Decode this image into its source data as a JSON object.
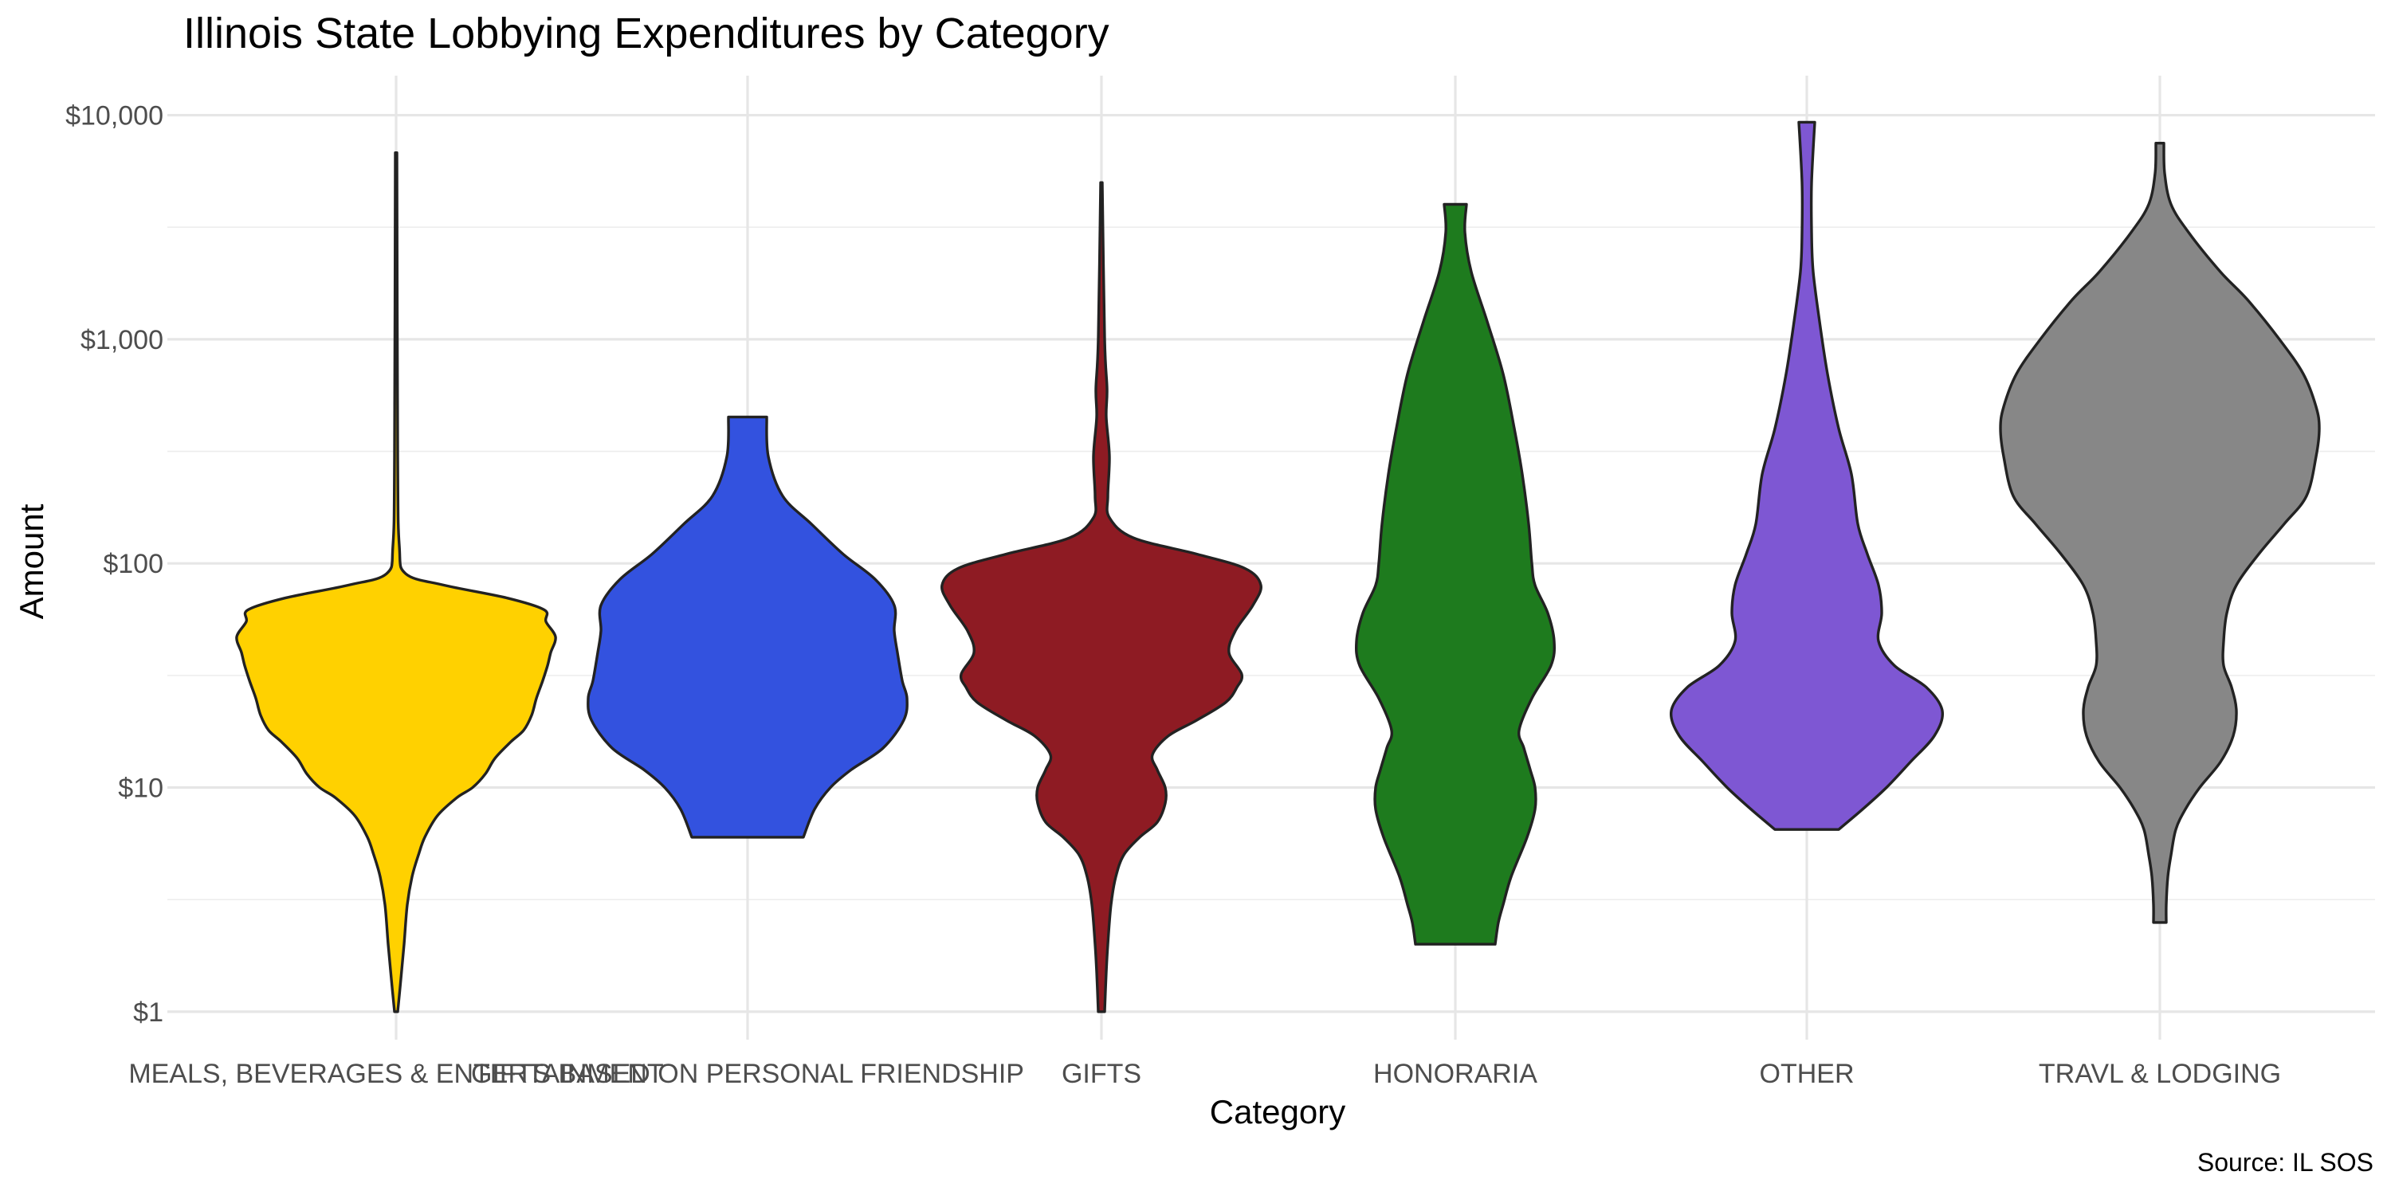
{
  "chart_data": {
    "type": "violin",
    "title": "Illinois State Lobbying Expenditures by Category",
    "xlabel": "Category",
    "ylabel": "Amount",
    "caption": "Source: IL SOS",
    "y_scale": "log10",
    "ylim": [
      1,
      10000
    ],
    "y_ticks": [
      {
        "value": 1,
        "label": "$1"
      },
      {
        "value": 10,
        "label": "$10"
      },
      {
        "value": 100,
        "label": "$100"
      },
      {
        "value": 1000,
        "label": "$1,000"
      },
      {
        "value": 10000,
        "label": "$10,000"
      }
    ],
    "grid": true,
    "legend": "none",
    "categories": [
      {
        "label": "MEALS, BEVERAGES & ENTERTAINMENT",
        "color": "#FFD100",
        "min": 1,
        "max": 6800,
        "profile": [
          [
            1,
            0.01
          ],
          [
            1.4,
            0.03
          ],
          [
            2,
            0.05
          ],
          [
            3,
            0.07
          ],
          [
            4,
            0.1
          ],
          [
            5,
            0.14
          ],
          [
            6,
            0.18
          ],
          [
            7.5,
            0.26
          ],
          [
            9,
            0.38
          ],
          [
            10,
            0.48
          ],
          [
            11.5,
            0.56
          ],
          [
            13.5,
            0.62
          ],
          [
            16,
            0.72
          ],
          [
            18,
            0.8
          ],
          [
            21,
            0.85
          ],
          [
            25,
            0.88
          ],
          [
            30,
            0.92
          ],
          [
            35,
            0.95
          ],
          [
            40,
            0.97
          ],
          [
            47,
            1.0
          ],
          [
            55,
            0.94
          ],
          [
            62,
            0.93
          ],
          [
            70,
            0.7
          ],
          [
            80,
            0.3
          ],
          [
            90,
            0.06
          ],
          [
            120,
            0.02
          ],
          [
            300,
            0.01
          ],
          [
            6800,
            0.005
          ]
        ]
      },
      {
        "label": "GIFTS BASED ON PERSONAL FRIENDSHIP",
        "color": "#3352DF",
        "min": 6,
        "max": 450,
        "profile": [
          [
            6,
            0.35
          ],
          [
            8,
            0.42
          ],
          [
            10,
            0.52
          ],
          [
            12,
            0.65
          ],
          [
            15,
            0.85
          ],
          [
            20,
            0.98
          ],
          [
            25,
            1.0
          ],
          [
            30,
            0.97
          ],
          [
            40,
            0.94
          ],
          [
            50,
            0.92
          ],
          [
            65,
            0.92
          ],
          [
            85,
            0.8
          ],
          [
            110,
            0.6
          ],
          [
            150,
            0.4
          ],
          [
            200,
            0.22
          ],
          [
            300,
            0.13
          ],
          [
            450,
            0.12
          ]
        ]
      },
      {
        "label": "GIFTS",
        "color": "#8E1B23",
        "min": 1,
        "max": 5000,
        "profile": [
          [
            1,
            0.02
          ],
          [
            1.5,
            0.03
          ],
          [
            2,
            0.04
          ],
          [
            3,
            0.06
          ],
          [
            4,
            0.09
          ],
          [
            5,
            0.14
          ],
          [
            6,
            0.24
          ],
          [
            7,
            0.35
          ],
          [
            8.5,
            0.4
          ],
          [
            10,
            0.4
          ],
          [
            12,
            0.35
          ],
          [
            14,
            0.32
          ],
          [
            17,
            0.42
          ],
          [
            20,
            0.6
          ],
          [
            24,
            0.78
          ],
          [
            28,
            0.85
          ],
          [
            32,
            0.88
          ],
          [
            40,
            0.8
          ],
          [
            50,
            0.84
          ],
          [
            65,
            0.95
          ],
          [
            80,
            1.0
          ],
          [
            95,
            0.9
          ],
          [
            110,
            0.6
          ],
          [
            130,
            0.2
          ],
          [
            160,
            0.05
          ],
          [
            200,
            0.04
          ],
          [
            300,
            0.05
          ],
          [
            450,
            0.03
          ],
          [
            600,
            0.035
          ],
          [
            1000,
            0.02
          ],
          [
            5000,
            0.005
          ]
        ]
      },
      {
        "label": "HONORARIA",
        "color": "#1E7B1E",
        "min": 2,
        "max": 4000,
        "profile": [
          [
            2,
            0.25
          ],
          [
            2.5,
            0.27
          ],
          [
            3,
            0.3
          ],
          [
            4,
            0.35
          ],
          [
            6,
            0.45
          ],
          [
            8,
            0.5
          ],
          [
            10,
            0.5
          ],
          [
            12,
            0.47
          ],
          [
            15,
            0.43
          ],
          [
            18,
            0.4
          ],
          [
            25,
            0.48
          ],
          [
            35,
            0.6
          ],
          [
            45,
            0.62
          ],
          [
            60,
            0.58
          ],
          [
            80,
            0.5
          ],
          [
            100,
            0.48
          ],
          [
            150,
            0.46
          ],
          [
            250,
            0.42
          ],
          [
            400,
            0.37
          ],
          [
            700,
            0.3
          ],
          [
            1200,
            0.2
          ],
          [
            2000,
            0.1
          ],
          [
            3000,
            0.06
          ],
          [
            4000,
            0.07
          ]
        ]
      },
      {
        "label": "OTHER",
        "color": "#7E57D3",
        "min": 6.5,
        "max": 9300,
        "profile": [
          [
            6.5,
            0.2
          ],
          [
            8,
            0.35
          ],
          [
            10,
            0.5
          ],
          [
            13,
            0.65
          ],
          [
            17,
            0.8
          ],
          [
            22,
            0.85
          ],
          [
            28,
            0.75
          ],
          [
            35,
            0.55
          ],
          [
            45,
            0.45
          ],
          [
            60,
            0.47
          ],
          [
            80,
            0.45
          ],
          [
            110,
            0.38
          ],
          [
            150,
            0.32
          ],
          [
            250,
            0.28
          ],
          [
            400,
            0.2
          ],
          [
            700,
            0.13
          ],
          [
            1200,
            0.08
          ],
          [
            2000,
            0.04
          ],
          [
            3000,
            0.03
          ],
          [
            5000,
            0.03
          ],
          [
            9300,
            0.05
          ]
        ]
      },
      {
        "label": "TRAVL & LODGING",
        "color": "#878787",
        "min": 2.5,
        "max": 7500,
        "profile": [
          [
            2.5,
            0.04
          ],
          [
            3,
            0.04
          ],
          [
            4,
            0.05
          ],
          [
            5,
            0.07
          ],
          [
            6.5,
            0.1
          ],
          [
            8,
            0.16
          ],
          [
            10,
            0.25
          ],
          [
            13,
            0.38
          ],
          [
            17,
            0.46
          ],
          [
            22,
            0.48
          ],
          [
            28,
            0.45
          ],
          [
            35,
            0.4
          ],
          [
            45,
            0.4
          ],
          [
            60,
            0.42
          ],
          [
            80,
            0.48
          ],
          [
            110,
            0.62
          ],
          [
            150,
            0.78
          ],
          [
            200,
            0.92
          ],
          [
            300,
            0.98
          ],
          [
            400,
            1.0
          ],
          [
            500,
            0.98
          ],
          [
            700,
            0.9
          ],
          [
            1000,
            0.75
          ],
          [
            1500,
            0.55
          ],
          [
            2000,
            0.38
          ],
          [
            3000,
            0.18
          ],
          [
            4000,
            0.07
          ],
          [
            5500,
            0.03
          ],
          [
            7500,
            0.025
          ]
        ]
      }
    ]
  }
}
